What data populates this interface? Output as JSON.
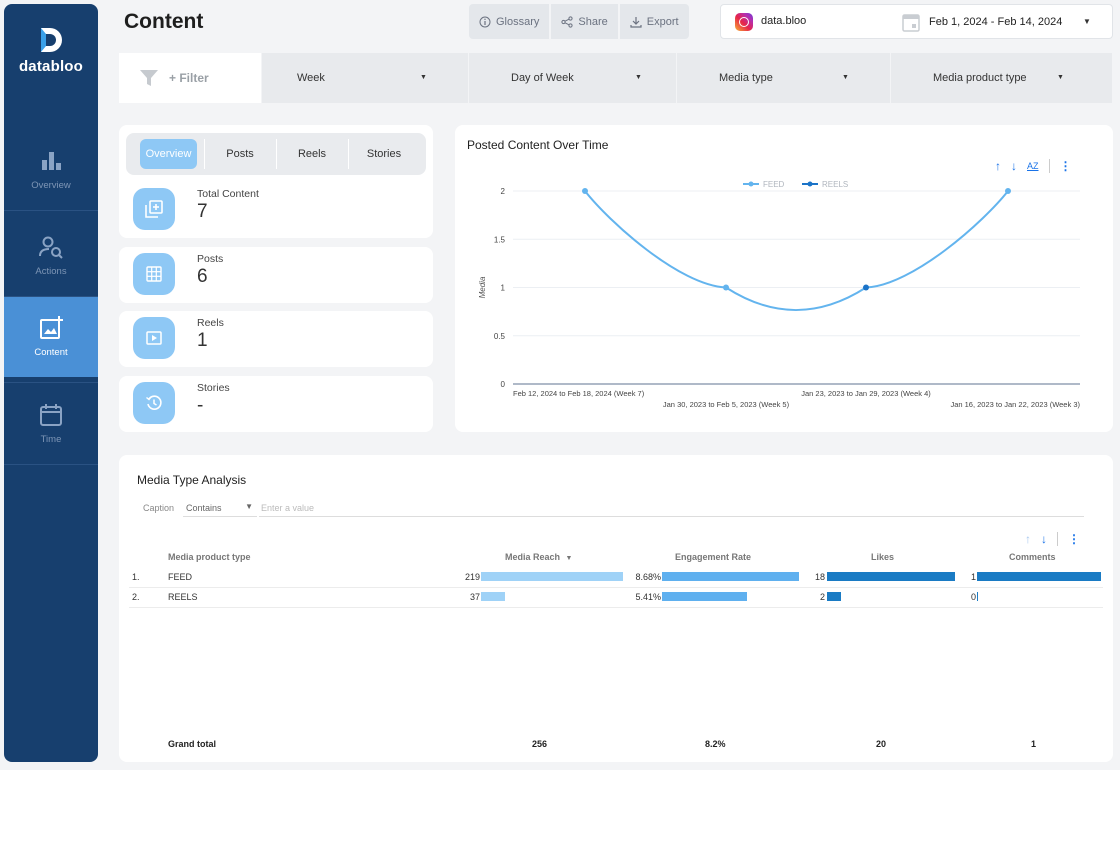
{
  "app": {
    "logo_text": "databloo",
    "page_title": "Content"
  },
  "sidebar": {
    "items": [
      {
        "label": "Overview",
        "icon": "bar-chart-icon"
      },
      {
        "label": "Actions",
        "icon": "person-search-icon"
      },
      {
        "label": "Content",
        "icon": "add-photo-icon",
        "active": true
      },
      {
        "label": "Time",
        "icon": "calendar-icon"
      }
    ]
  },
  "header": {
    "glossary": "Glossary",
    "share": "Share",
    "export": "Export",
    "account": "data.bloo",
    "date_range": "Feb 1, 2024 - Feb 14, 2024"
  },
  "filters": {
    "add": "+ Filter",
    "dropdowns": [
      "Week",
      "Day of Week",
      "Media type",
      "Media product type"
    ]
  },
  "kpi": {
    "tabs": [
      "Overview",
      "Posts",
      "Reels",
      "Stories"
    ],
    "active_tab": "Overview",
    "cards": [
      {
        "label": "Total Content",
        "value": "7"
      },
      {
        "label": "Posts",
        "value": "6"
      },
      {
        "label": "Reels",
        "value": "1"
      },
      {
        "label": "Stories",
        "value": "-"
      }
    ]
  },
  "chart_data": {
    "type": "line",
    "title": "Posted Content Over Time",
    "ylabel": "Media",
    "xlabel": "",
    "ylim": [
      0,
      2
    ],
    "yticks": [
      "2",
      "1.5",
      "1",
      "0.5",
      "0"
    ],
    "categories": [
      "Feb 12, 2024 to Feb 18, 2024 (Week 7)",
      "Jan 30, 2023 to Feb 5, 2023 (Week 5)",
      "Jan 23, 2023 to Jan 29, 2023 (Week 4)",
      "Jan 16, 2023 to Jan 22, 2023 (Week 3)"
    ],
    "series": [
      {
        "name": "FEED",
        "color": "#63b4ee",
        "values": [
          2,
          1,
          null,
          2
        ]
      },
      {
        "name": "REELS",
        "color": "#1a73c8",
        "values": [
          null,
          null,
          1,
          null
        ]
      }
    ],
    "legend_position": "top-center",
    "grid": true
  },
  "table": {
    "title": "Media Type Analysis",
    "caption_label": "Caption",
    "caption_operator": "Contains",
    "caption_placeholder": "Enter a value",
    "columns": [
      "Media product type",
      "Media Reach",
      "Engagement Rate",
      "Likes",
      "Comments"
    ],
    "sort_indicator": "▼",
    "rows": [
      {
        "index": "1.",
        "type": "FEED",
        "reach": "219",
        "engagement": "8.68%",
        "likes": "18",
        "comments": "1"
      },
      {
        "index": "2.",
        "type": "REELS",
        "reach": "37",
        "engagement": "5.41%",
        "likes": "2",
        "comments": "0"
      }
    ],
    "bar_fractions": {
      "reach": [
        1.0,
        0.169
      ],
      "engagement": [
        1.0,
        0.623
      ],
      "likes": [
        1.0,
        0.111
      ],
      "comments": [
        1.0,
        0.0
      ]
    },
    "grand_total": {
      "label": "Grand total",
      "reach": "256",
      "engagement": "8.2%",
      "likes": "20",
      "comments": "1"
    },
    "colors": {
      "reach": "#9fd2f7",
      "engagement": "#5fb0ef",
      "likes": "#1a7bc4",
      "comments": "#1a7bc4"
    }
  }
}
